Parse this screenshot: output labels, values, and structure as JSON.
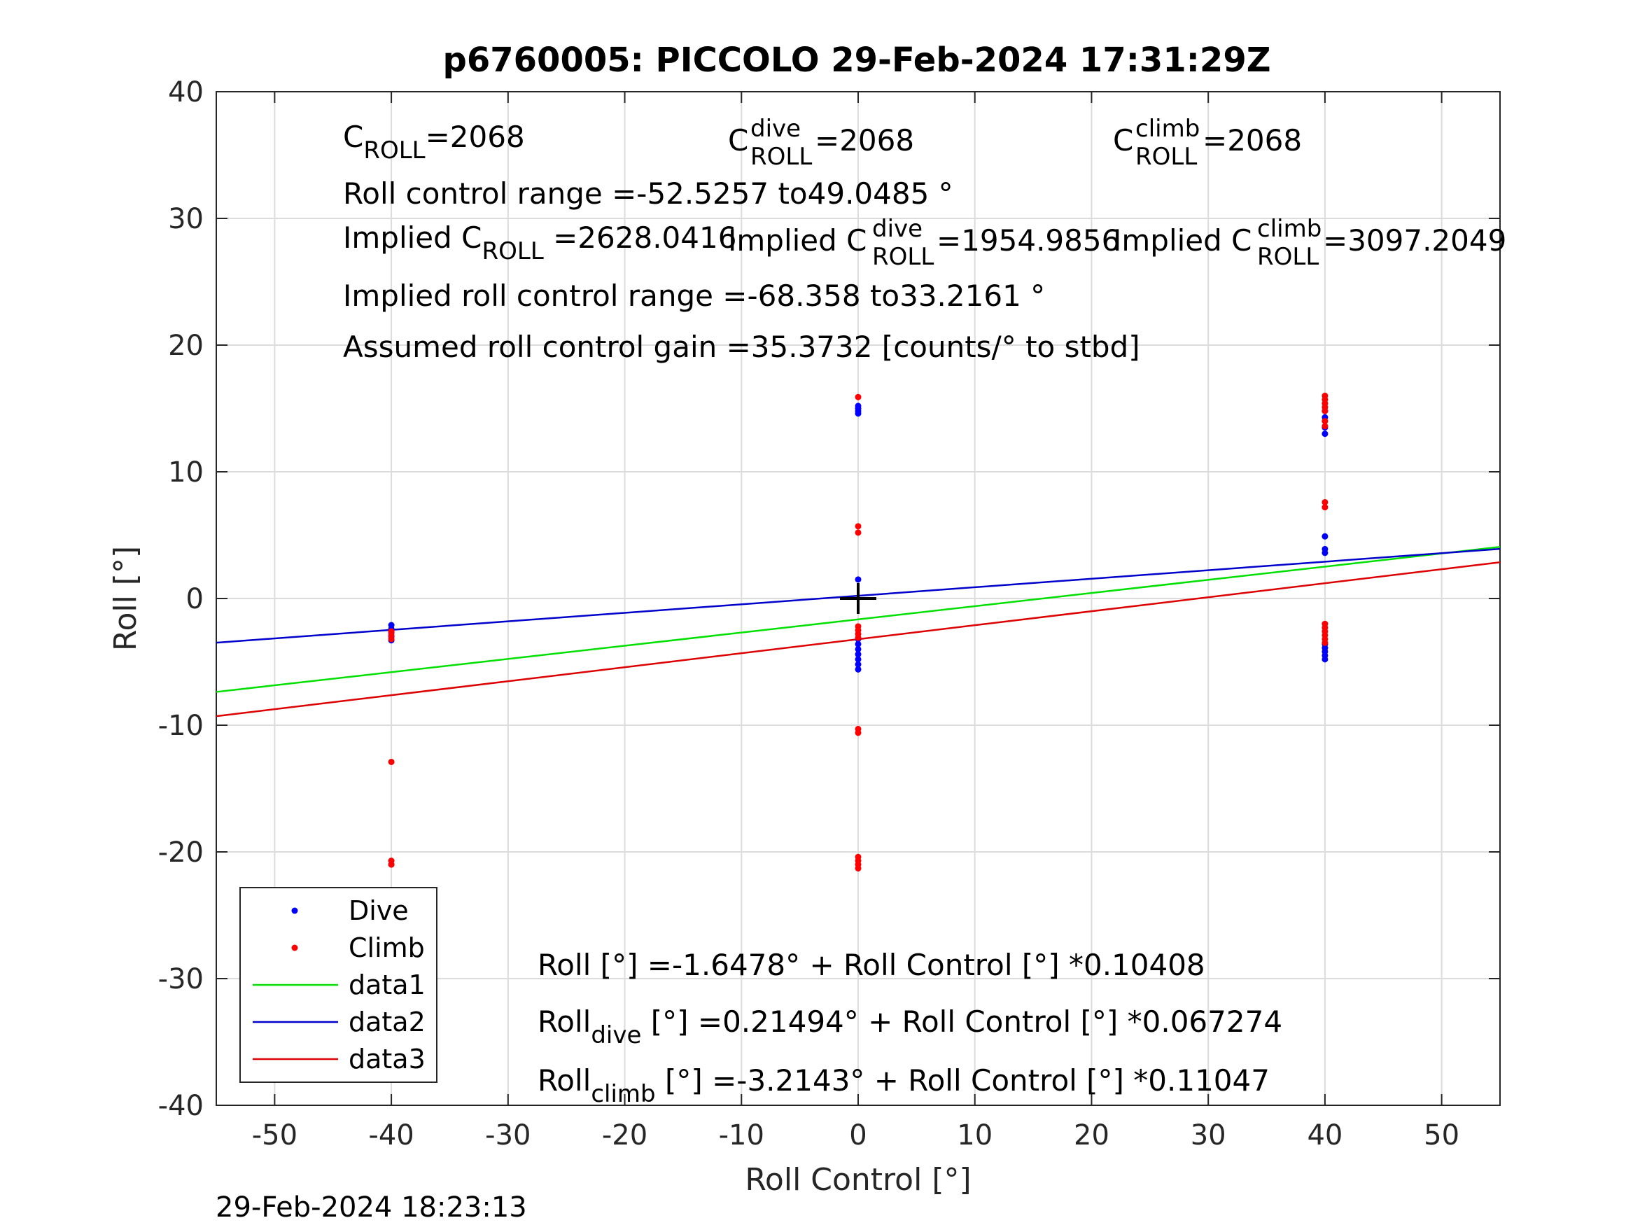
{
  "chart_data": {
    "type": "scatter",
    "title": "p6760005: PICCOLO 29-Feb-2024 17:31:29Z",
    "xlabel": "Roll Control [°]",
    "ylabel": "Roll [°]",
    "xlim": [
      -55,
      55
    ],
    "ylim": [
      -40,
      40
    ],
    "xticks": [
      -50,
      -40,
      -30,
      -20,
      -10,
      0,
      10,
      20,
      30,
      40,
      50
    ],
    "yticks": [
      -40,
      -30,
      -20,
      -10,
      0,
      10,
      20,
      30,
      40
    ],
    "xtick_labels": [
      "-50",
      "-40",
      "-30",
      "-20",
      "-10",
      "0",
      "10",
      "20",
      "30",
      "40",
      "50"
    ],
    "ytick_labels": [
      "-40",
      "-30",
      "-20",
      "-10",
      "0",
      "10",
      "20",
      "30",
      "40"
    ],
    "grid": true,
    "legend_position": "bottom-left",
    "marker": {
      "x": 0,
      "y": 0,
      "symbol": "+"
    },
    "series": [
      {
        "name": "Dive",
        "kind": "points",
        "color": "#0000ff",
        "points": [
          [
            -40,
            -2.1
          ],
          [
            -40,
            -2.4
          ],
          [
            -40,
            -2.7
          ],
          [
            -40,
            -3.0
          ],
          [
            -40,
            -3.3
          ],
          [
            0,
            14.6
          ],
          [
            0,
            14.8
          ],
          [
            0,
            15.0
          ],
          [
            0,
            15.2
          ],
          [
            0,
            1.5
          ],
          [
            0,
            -3.2
          ],
          [
            0,
            -3.6
          ],
          [
            0,
            -4.0
          ],
          [
            0,
            -4.4
          ],
          [
            0,
            -4.8
          ],
          [
            0,
            -5.2
          ],
          [
            0,
            -5.6
          ],
          [
            40,
            13.0
          ],
          [
            40,
            13.5
          ],
          [
            40,
            14.3
          ],
          [
            40,
            14.8
          ],
          [
            40,
            4.9
          ],
          [
            40,
            3.9
          ],
          [
            40,
            3.6
          ],
          [
            40,
            -3.6
          ],
          [
            40,
            -3.9
          ],
          [
            40,
            -4.2
          ],
          [
            40,
            -4.5
          ],
          [
            40,
            -4.8
          ]
        ]
      },
      {
        "name": "Climb",
        "kind": "points",
        "color": "#ff0000",
        "points": [
          [
            -40,
            -2.6
          ],
          [
            -40,
            -2.9
          ],
          [
            -40,
            -3.2
          ],
          [
            -40,
            -12.9
          ],
          [
            -40,
            -20.7
          ],
          [
            -40,
            -21.0
          ],
          [
            0,
            15.9
          ],
          [
            0,
            5.7
          ],
          [
            0,
            5.2
          ],
          [
            0,
            -2.2
          ],
          [
            0,
            -2.5
          ],
          [
            0,
            -2.8
          ],
          [
            0,
            -3.1
          ],
          [
            0,
            -10.3
          ],
          [
            0,
            -10.6
          ],
          [
            0,
            -20.4
          ],
          [
            0,
            -20.7
          ],
          [
            0,
            -21.0
          ],
          [
            0,
            -21.3
          ],
          [
            40,
            16.0
          ],
          [
            40,
            15.7
          ],
          [
            40,
            15.4
          ],
          [
            40,
            15.1
          ],
          [
            40,
            14.8
          ],
          [
            40,
            14.0
          ],
          [
            40,
            13.6
          ],
          [
            40,
            7.6
          ],
          [
            40,
            7.2
          ],
          [
            40,
            -2.0
          ],
          [
            40,
            -2.3
          ],
          [
            40,
            -2.6
          ],
          [
            40,
            -2.9
          ],
          [
            40,
            -3.2
          ],
          [
            40,
            -3.5
          ]
        ]
      },
      {
        "name": "data1",
        "kind": "line",
        "color": "#00e000",
        "intercept": -1.6478,
        "slope": 0.10408
      },
      {
        "name": "data2",
        "kind": "line",
        "color": "#0000cc",
        "intercept": 0.21494,
        "slope": 0.067274
      },
      {
        "name": "data3",
        "kind": "line",
        "color": "#dd0000",
        "intercept": -3.2143,
        "slope": 0.11047
      }
    ],
    "annotations": {
      "c_roll": {
        "base": "C",
        "sub": "ROLL",
        "value": "=2068"
      },
      "c_roll_dive": {
        "base": "C",
        "sup": "dive",
        "sub": "ROLL",
        "value": " =2068"
      },
      "c_roll_climb": {
        "base": "C",
        "sup": "climb",
        "sub": "ROLL",
        "value": " =2068"
      },
      "roll_control_range": "Roll control range =-52.5257 to49.0485 °",
      "implied_c_roll": {
        "prefix": "Implied C",
        "sub": "ROLL",
        "value": " =2628.0416"
      },
      "implied_c_roll_dive": {
        "prefix": "Implied C",
        "sup": "dive",
        "sub": "ROLL",
        "value": " =1954.9856"
      },
      "implied_c_roll_climb": {
        "prefix": "Implied C",
        "sup": "climb",
        "sub": "ROLL",
        "value": " =3097.2049"
      },
      "implied_range": "Implied roll control range =-68.358 to33.2161 °",
      "gain": "Assumed roll control gain =35.3732 [counts/° to stbd]",
      "fit_all": "Roll [°] =-1.6478° + Roll Control [°] *0.10408",
      "fit_dive": {
        "base": "Roll",
        "sub": "dive",
        "rest": " [°] =0.21494° + Roll Control [°] *0.067274"
      },
      "fit_climb": {
        "base": "Roll",
        "sub": "climb",
        "rest": " [°] =-3.2143° + Roll Control [°] *0.11047"
      }
    },
    "timestamp": "29-Feb-2024 18:23:13"
  }
}
